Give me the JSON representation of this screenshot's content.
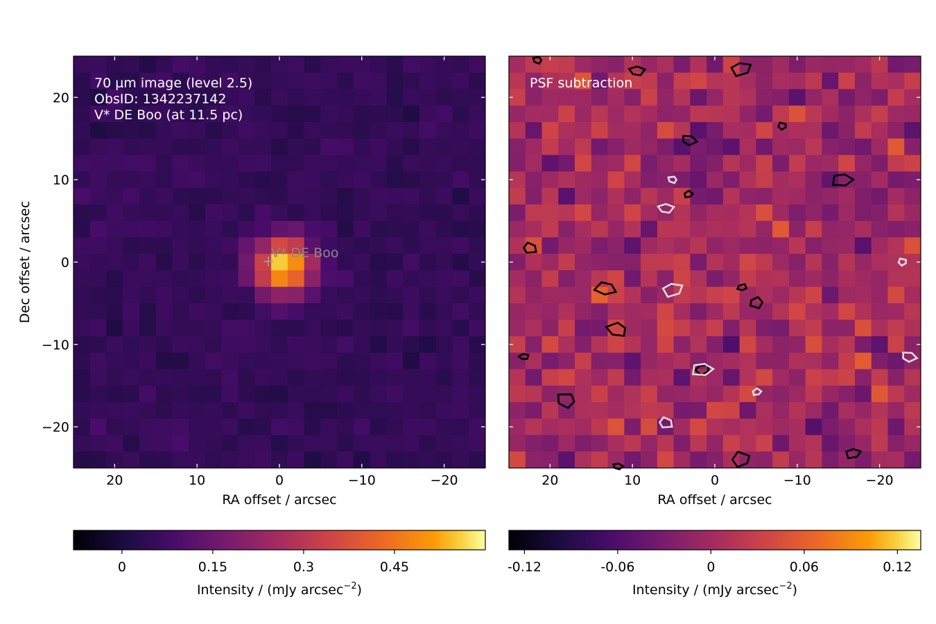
{
  "chart_data": [
    {
      "type": "heatmap",
      "panel": "left",
      "title": "",
      "annotation_lines": [
        "70 µm image (level 2.5)",
        "ObsID: 1342237142",
        "V* DE Boo (at 11.5 pc)"
      ],
      "xlabel": "RA offset / arcsec",
      "ylabel": "Dec offset / arcsec",
      "xlim": [
        25,
        -25
      ],
      "ylim": [
        -25,
        25
      ],
      "xticks": [
        20,
        10,
        0,
        -10,
        -20
      ],
      "xtick_labels": [
        "20",
        "10",
        "0",
        "−10",
        "−20"
      ],
      "yticks": [
        20,
        10,
        0,
        -10,
        -20
      ],
      "ytick_labels": [
        "20",
        "10",
        "0",
        "−10",
        "−20"
      ],
      "colormap": "inferno",
      "pixel_size_arcsec": 2,
      "grid_shape": [
        25,
        25
      ],
      "source_marker": {
        "label": "V* DE Boo",
        "x": 1.5,
        "y": 0.2,
        "symbol": "+"
      },
      "peak": {
        "x": -0.5,
        "y": -0.5,
        "value": 0.58
      },
      "background_level": 0.05,
      "colorbar": {
        "label": "Intensity / (mJy arcsec",
        "label_exponent": "−2",
        "label_close": ")",
        "range": [
          -0.08,
          0.6
        ],
        "ticks": [
          0,
          0.15,
          0.3,
          0.45
        ],
        "tick_labels": [
          "0",
          "0.15",
          "0.3",
          "0.45"
        ]
      }
    },
    {
      "type": "heatmap",
      "panel": "right",
      "title": "",
      "annotation_lines": [
        "PSF subtraction"
      ],
      "xlabel": "RA offset / arcsec",
      "xlim": [
        25,
        -25
      ],
      "ylim": [
        -25,
        25
      ],
      "xticks": [
        20,
        10,
        0,
        -10,
        -20
      ],
      "xtick_labels": [
        "20",
        "10",
        "0",
        "−10",
        "−20"
      ],
      "yticks": [
        20,
        10,
        0,
        -10,
        -20
      ],
      "colormap": "inferno",
      "pixel_size_arcsec": 2,
      "grid_shape": [
        25,
        25
      ],
      "residual_rms": 0.045,
      "contours": [
        {
          "level": "positive",
          "color": "#000000",
          "centers": [
            [
              21.5,
              24.5
            ],
            [
              9.5,
              23.2
            ],
            [
              -3.2,
              23.5
            ],
            [
              -8.2,
              16.5
            ],
            [
              3.2,
              14.8
            ],
            [
              -15.5,
              10
            ],
            [
              3.2,
              8.2
            ],
            [
              22.5,
              1.7
            ],
            [
              13.2,
              -3.2
            ],
            [
              -3.3,
              -3.1
            ],
            [
              -5,
              -4.9
            ],
            [
              11.8,
              -8.2
            ],
            [
              23.2,
              -11.5
            ],
            [
              1.5,
              -13
            ],
            [
              18,
              -16.8
            ],
            [
              11.8,
              -24.8
            ],
            [
              -16.8,
              -23.2
            ],
            [
              -3.2,
              -24
            ]
          ]
        },
        {
          "level": "negative",
          "color": "#dddddd",
          "centers": [
            [
              5.1,
              10
            ],
            [
              6,
              6.5
            ],
            [
              5.1,
              -3.3
            ],
            [
              -22.8,
              0
            ],
            [
              -23.5,
              -11.5
            ],
            [
              1.5,
              -13
            ],
            [
              -5.1,
              -15.8
            ],
            [
              6,
              -19.5
            ]
          ]
        }
      ],
      "colorbar": {
        "label": "Intensity / (mJy arcsec",
        "label_exponent": "−2",
        "label_close": ")",
        "range": [
          -0.13,
          0.135
        ],
        "ticks": [
          -0.12,
          -0.06,
          0,
          0.06,
          0.12
        ],
        "tick_labels": [
          "-0.12",
          "-0.06",
          "0",
          "0.06",
          "0.12"
        ]
      }
    }
  ]
}
